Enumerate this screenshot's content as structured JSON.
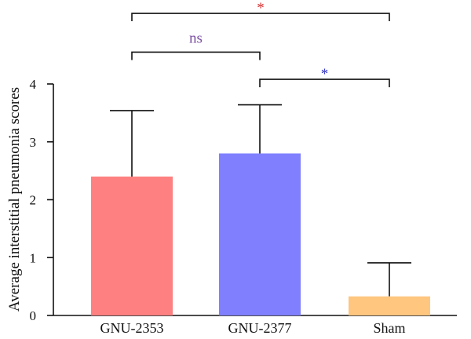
{
  "chart_data": {
    "type": "bar",
    "title": "",
    "xlabel": "",
    "ylabel": "Average interstitial pneumonia scores",
    "ylim": [
      0,
      4
    ],
    "yticks": [
      0,
      1,
      2,
      3,
      4
    ],
    "grid": false,
    "categories": [
      "GNU-2353",
      "GNU-2377",
      "Sham"
    ],
    "values": [
      2.4,
      2.8,
      0.33
    ],
    "error_upper": [
      3.54,
      3.64,
      0.91
    ],
    "bar_colors": [
      "#ff8080",
      "#8080ff",
      "#ffc680"
    ],
    "significance": [
      {
        "from": 0,
        "to": 1,
        "label": "ns",
        "color": "#7b4fa0",
        "level": 4.55
      },
      {
        "from": 1,
        "to": 2,
        "label": "*",
        "color": "#3535c8",
        "level": 4.08
      },
      {
        "from": 0,
        "to": 2,
        "label": "*",
        "color": "#d93030",
        "level": 5.22
      }
    ]
  }
}
